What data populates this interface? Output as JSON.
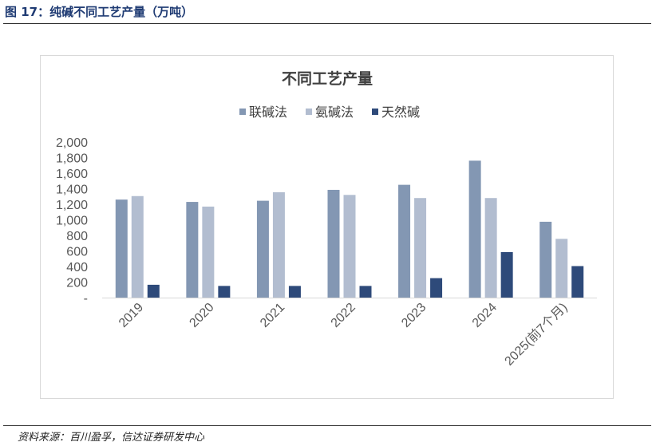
{
  "figure": {
    "title": "图 17：纯碱不同工艺产量（万吨）",
    "source": "资料来源：百川盈孚，信达证券研发中心"
  },
  "chart_data": {
    "type": "bar",
    "title": "不同工艺产量",
    "xlabel": "",
    "ylabel": "",
    "categories": [
      "2019",
      "2020",
      "2021",
      "2022",
      "2023",
      "2024",
      "2025(前7个月)"
    ],
    "series": [
      {
        "name": "联碱法",
        "color": "#8397b3",
        "values": [
          1260,
          1230,
          1245,
          1385,
          1450,
          1760,
          975
        ]
      },
      {
        "name": "氨碱法",
        "color": "#b2bdd0",
        "values": [
          1305,
          1170,
          1355,
          1320,
          1280,
          1280,
          755
        ]
      },
      {
        "name": "天然碱",
        "color": "#2e4a7a",
        "values": [
          165,
          150,
          150,
          150,
          250,
          585,
          405
        ]
      }
    ],
    "ylim": [
      0,
      2000
    ],
    "yticks": [
      0,
      200,
      400,
      600,
      800,
      1000,
      1200,
      1400,
      1600,
      1800,
      2000
    ],
    "ytick_labels": [
      "-",
      "200",
      "400",
      "600",
      "800",
      "1,000",
      "1,200",
      "1,400",
      "1,600",
      "1,800",
      "2,000"
    ],
    "legend_position": "top-center",
    "grid": false
  }
}
